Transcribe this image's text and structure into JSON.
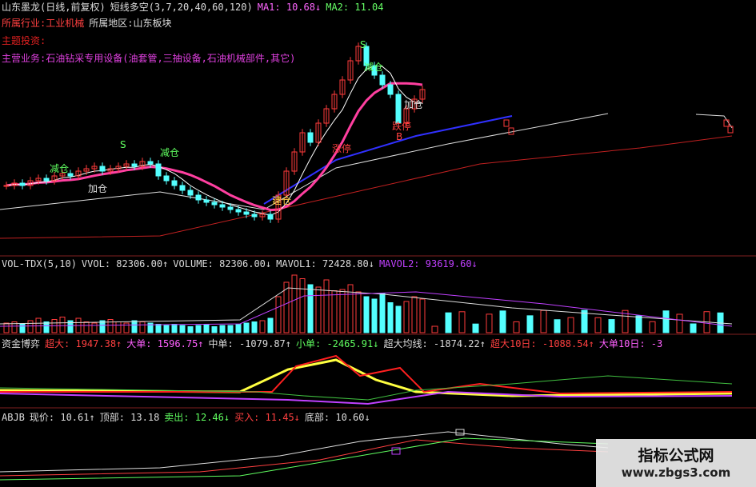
{
  "header": {
    "stock": "山东墨龙(日线,前复权)",
    "indicator": "短线多空(3,7,20,40,60,120)",
    "ma1_label": "MA1: 10.68↓",
    "ma2_label": "MA2: 11.04",
    "industry": "所属行业:工业机械",
    "region": "所属地区:山东板块",
    "theme": "主题投资:",
    "business": "主营业务:石油钻采专用设备(油套管,三抽设备,石油机械部件,其它)"
  },
  "signals": [
    "减仓",
    "加仓",
    "涨停",
    "跌停",
    "建仓",
    "S",
    "B"
  ],
  "volume_header": {
    "name": "VOL-TDX(5,10)",
    "vvol": "VVOL: 82306.00↑",
    "volume": "VOLUME: 82306.00↓",
    "mavol1": "MAVOL1: 72428.80↓",
    "mavol2": "MAVOL2: 93619.60↓"
  },
  "fund_header": {
    "name": "资金博弈",
    "super": "超大: 1947.38↑",
    "large": "大单: 1596.75↑",
    "mid": "中单: -1079.87↑",
    "small": "小单: -2465.91↓",
    "super_avg": "超大均线: -1874.22↑",
    "super10": "超大10日: -1088.54↑",
    "large10": "大单10日: -3"
  },
  "abjb_header": {
    "name": "ABJB",
    "price": "现价: 10.61↑",
    "top": "顶部: 13.18",
    "sell": "卖出: 12.46↓",
    "buy": "买入: 11.45↓",
    "bottom": "底部: 10.60↓"
  },
  "watermark": {
    "title": "指标公式网",
    "url": "www.zbgs3.com"
  },
  "colors": {
    "up": "#ff3b3b",
    "down": "#54ffff",
    "ma1": "#ffffff",
    "ma2": "#ff3fa0",
    "blue": "#3030ff",
    "red_line": "#c02020",
    "yellow": "#ffff40"
  },
  "chart_data": {
    "type": "candlestick",
    "closes": [
      10.3,
      10.35,
      10.3,
      10.4,
      10.45,
      10.4,
      10.5,
      10.55,
      10.5,
      10.6,
      10.65,
      10.7,
      10.6,
      10.65,
      10.7,
      10.75,
      10.7,
      10.8,
      10.75,
      10.5,
      10.4,
      10.3,
      10.2,
      10.1,
      10.0,
      9.95,
      9.9,
      9.85,
      9.8,
      9.75,
      9.7,
      9.65,
      9.7,
      9.6,
      10.1,
      10.6,
      11.0,
      11.4,
      11.2,
      11.6,
      11.9,
      12.2,
      12.5,
      12.9,
      13.2,
      12.8,
      12.6,
      12.4,
      12.2,
      11.6,
      11.9,
      12.1,
      12.3
    ],
    "volumes": [
      8,
      9,
      7,
      10,
      12,
      9,
      11,
      13,
      10,
      12,
      9,
      8,
      10,
      11,
      9,
      8,
      10,
      9,
      8,
      7,
      6,
      7,
      6,
      5,
      6,
      7,
      5,
      6,
      6,
      7,
      8,
      9,
      10,
      12,
      30,
      42,
      48,
      45,
      40,
      38,
      44,
      35,
      36,
      40,
      34,
      30,
      28,
      33,
      25,
      22,
      26,
      30,
      28
    ]
  }
}
